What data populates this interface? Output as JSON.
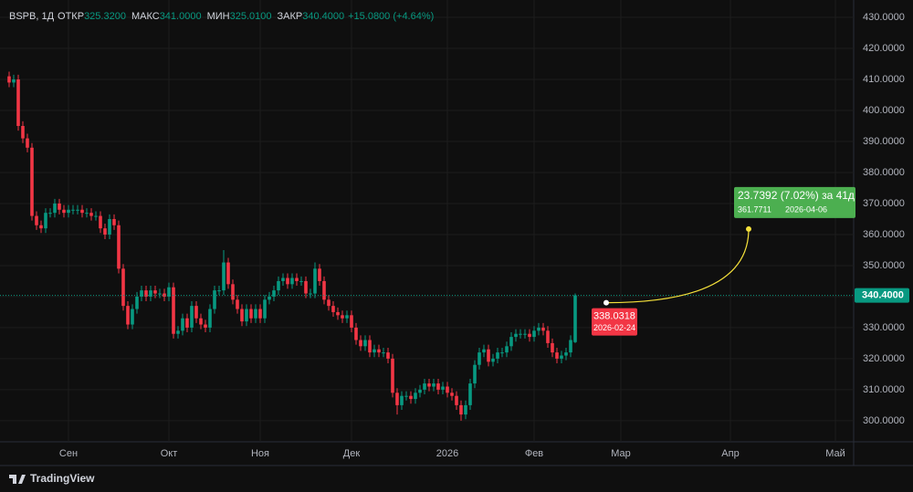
{
  "chart_data": {
    "type": "candlestick",
    "header": {
      "symbol": "BSPB, 1Д",
      "items": [
        {
          "name": "ОТКР",
          "value": "325.3200"
        },
        {
          "name": "МАКС",
          "value": "341.0000"
        },
        {
          "name": "МИН",
          "value": "325.0100"
        },
        {
          "name": "ЗАКР",
          "value": "340.4000"
        }
      ],
      "change": "+15.0800 (+4.64%)"
    },
    "up_color": "#089981",
    "down_color": "#f23645",
    "grid": true,
    "xlim": [
      -2,
      185
    ],
    "xticks": [
      {
        "value": 13,
        "label": "Сен"
      },
      {
        "value": 35,
        "label": "Окт"
      },
      {
        "value": 55,
        "label": "Ноя"
      },
      {
        "value": 75,
        "label": "Дек"
      },
      {
        "value": 96,
        "label": "2026"
      },
      {
        "value": 115,
        "label": "Фев"
      },
      {
        "value": 134,
        "label": "Мар"
      },
      {
        "value": 158,
        "label": "Апр"
      },
      {
        "value": 181,
        "label": "Май"
      }
    ],
    "ylim": [
      293.2,
      435.6
    ],
    "yticks": [
      {
        "value": 300,
        "label": "300.0000"
      },
      {
        "value": 310,
        "label": "310.0000"
      },
      {
        "value": 320,
        "label": "320.0000"
      },
      {
        "value": 330,
        "label": "330.0000"
      },
      {
        "value": 340,
        "label": "340.0000"
      },
      {
        "value": 350,
        "label": "350.0000"
      },
      {
        "value": 360,
        "label": "360.0000"
      },
      {
        "value": 370,
        "label": "370.0000"
      },
      {
        "value": 380,
        "label": "380.0000"
      },
      {
        "value": 390,
        "label": "390.0000"
      },
      {
        "value": 400,
        "label": "400.0000"
      },
      {
        "value": 410,
        "label": "410.0000"
      },
      {
        "value": 420,
        "label": "420.0000"
      },
      {
        "value": 430,
        "label": "430.0000"
      }
    ],
    "open": [
      411,
      409,
      410,
      395,
      391,
      388,
      366,
      363,
      362,
      367,
      367,
      370,
      368,
      367,
      368,
      368,
      368,
      367,
      367,
      366,
      366,
      362,
      360,
      365,
      363,
      349,
      337,
      331,
      336,
      340,
      342,
      340,
      342,
      341,
      341,
      340,
      343,
      328,
      329,
      333,
      330,
      337,
      333,
      331,
      330,
      336,
      342,
      342,
      351,
      344,
      339,
      336,
      332,
      336,
      333,
      336,
      333,
      339,
      340,
      342,
      345,
      346,
      344,
      346,
      345,
      345,
      341,
      341,
      349,
      345,
      339,
      337,
      335,
      334,
      333,
      334,
      330,
      326,
      324,
      326,
      322,
      323,
      322,
      322,
      320,
      309,
      305,
      308,
      308,
      307,
      309,
      310,
      312,
      311,
      312,
      310,
      311,
      309,
      308,
      305,
      302,
      305,
      312,
      318,
      322,
      323,
      319,
      320,
      322,
      322,
      324,
      327,
      328,
      328,
      328,
      327,
      329,
      330,
      329,
      325,
      322,
      320,
      321,
      322,
      325.32
    ],
    "high": [
      412.5,
      411.5,
      411.5,
      396.5,
      392.5,
      389.5,
      367.5,
      364.5,
      368.5,
      368.5,
      371.5,
      371.5,
      369.5,
      369.5,
      369.5,
      369.5,
      369.5,
      368.5,
      368.5,
      367.5,
      367.5,
      363.5,
      366.5,
      366.5,
      364.5,
      350.5,
      338.5,
      337.5,
      341.5,
      343.5,
      343.5,
      343.5,
      343.5,
      342.5,
      342.5,
      344.5,
      344.5,
      330.5,
      334.5,
      334.5,
      338.5,
      338.5,
      334.5,
      332.5,
      337.5,
      343.5,
      343.5,
      355,
      352.5,
      345.5,
      340.5,
      337.5,
      337.5,
      337.5,
      337.5,
      337.5,
      340.5,
      341.5,
      343.5,
      346.5,
      347.5,
      347.5,
      347.5,
      347.5,
      346.5,
      346.5,
      342.5,
      351,
      350.5,
      346.5,
      340.5,
      338.5,
      336.5,
      335.5,
      335.5,
      335.5,
      331.5,
      327.5,
      327.5,
      327.5,
      324.5,
      324.5,
      323.5,
      323.5,
      321.5,
      310.5,
      309.5,
      309.5,
      309.5,
      310.5,
      311.5,
      313.5,
      313.5,
      313.5,
      313.5,
      312.5,
      312.5,
      310.5,
      309.5,
      306.5,
      306.5,
      313.5,
      319.5,
      323.5,
      324.5,
      324.5,
      321.5,
      323.5,
      323.5,
      325.5,
      328.5,
      329.5,
      329.5,
      329.5,
      329.5,
      330.5,
      331.5,
      331.5,
      330.5,
      326.5,
      323.5,
      322.5,
      323.5,
      327.5,
      341
    ],
    "low": [
      407.5,
      407.5,
      393.5,
      389.5,
      386.5,
      364.5,
      361.5,
      360.5,
      360.5,
      365.5,
      365.5,
      366.5,
      365.5,
      365.5,
      366.5,
      366.5,
      365.5,
      365.5,
      364.5,
      364.5,
      360.5,
      358.5,
      358.5,
      361.5,
      347.5,
      335.5,
      329.5,
      329.5,
      334.5,
      338.5,
      338.5,
      338.5,
      339.5,
      339.5,
      338.5,
      338.5,
      326.5,
      326.5,
      327.5,
      328.5,
      328.5,
      331.5,
      329.5,
      328.5,
      328.5,
      334.5,
      340.5,
      340.5,
      342.5,
      337.5,
      334.5,
      330.5,
      330.5,
      331.5,
      331.5,
      331.5,
      331.5,
      337.5,
      338.5,
      340.5,
      343.5,
      342.5,
      342.5,
      343.5,
      343.5,
      339.5,
      339.5,
      339.5,
      343.5,
      337.5,
      335.5,
      333.5,
      332.5,
      331.5,
      331.5,
      328.5,
      324.5,
      322.5,
      322.5,
      320.5,
      320.5,
      320.5,
      320.5,
      318.5,
      307.5,
      302,
      303.5,
      306.5,
      305.5,
      305.5,
      307.5,
      308.5,
      309.5,
      309.5,
      308.5,
      308.5,
      307.5,
      306.5,
      303.5,
      300,
      300.5,
      303.5,
      310.5,
      316.5,
      320.5,
      317.5,
      317.5,
      318.5,
      320.5,
      320.5,
      322.5,
      325.5,
      326.5,
      326.5,
      325.5,
      325.5,
      327.5,
      327.5,
      323.5,
      320.5,
      318.5,
      318.5,
      319.5,
      320.5,
      325.01
    ],
    "close": [
      409,
      410,
      395,
      391,
      388,
      366,
      363,
      362,
      367,
      367,
      370,
      368,
      367,
      368,
      368,
      368,
      367,
      367,
      366,
      366,
      362,
      360,
      365,
      363,
      349,
      337,
      331,
      336,
      340,
      342,
      340,
      342,
      341,
      341,
      340,
      343,
      328,
      329,
      333,
      330,
      337,
      333,
      331,
      330,
      336,
      342,
      342,
      351,
      344,
      339,
      336,
      332,
      336,
      333,
      336,
      333,
      339,
      340,
      342,
      345,
      346,
      344,
      346,
      345,
      345,
      341,
      341,
      349,
      345,
      339,
      337,
      335,
      334,
      333,
      334,
      330,
      326,
      324,
      326,
      322,
      323,
      322,
      322,
      320,
      309,
      305,
      308,
      308,
      307,
      309,
      310,
      312,
      311,
      312,
      310,
      311,
      309,
      308,
      305,
      302,
      305,
      312,
      318,
      322,
      323,
      319,
      320,
      322,
      322,
      324,
      327,
      328,
      328,
      328,
      327,
      329,
      330,
      329,
      325,
      322,
      320,
      321,
      322,
      326,
      340.4
    ],
    "last_price": {
      "value": 340.4,
      "label": "340.4000"
    },
    "forecast": {
      "start": {
        "value": 338.0318,
        "label": "338.0318"
      },
      "start_date": "2026-02-24",
      "end": {
        "value": 361.7711,
        "label": "361.7711"
      },
      "end_date": "2026-04-06",
      "change_label": "23.7392 (7.02%) за 41д"
    },
    "brand": "TradingView"
  }
}
